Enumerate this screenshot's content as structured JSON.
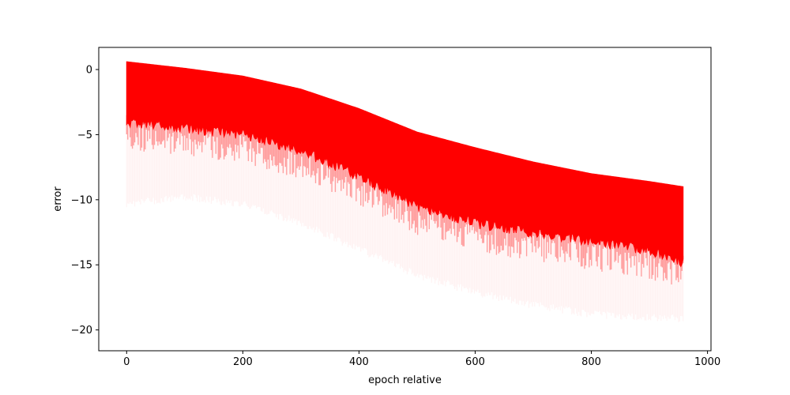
{
  "chart_data": {
    "type": "area",
    "title": "",
    "xlabel": "epoch relative",
    "ylabel": "error",
    "xlim": [
      -48,
      1006
    ],
    "ylim": [
      -21.6,
      1.7
    ],
    "x_ticks": [
      0,
      200,
      400,
      600,
      800,
      1000
    ],
    "x_tick_labels": [
      "0",
      "200",
      "400",
      "600",
      "800",
      "1000"
    ],
    "y_ticks": [
      0,
      -5,
      -10,
      -15,
      -20
    ],
    "y_tick_labels": [
      "0",
      "−5",
      "−10",
      "−15",
      "−20"
    ],
    "grid": false,
    "legend": "none",
    "color": "#ff0000",
    "series": [
      {
        "role": "upper_envelope",
        "x": [
          0,
          100,
          200,
          300,
          400,
          500,
          600,
          700,
          800,
          900,
          958
        ],
        "values": [
          0.6,
          0.1,
          -0.5,
          -1.5,
          -3.0,
          -4.8,
          -6.0,
          -7.1,
          -8.0,
          -8.6,
          -9.0
        ]
      },
      {
        "role": "dense_lower_bound",
        "x": [
          0,
          100,
          200,
          300,
          400,
          500,
          600,
          700,
          800,
          900,
          958
        ],
        "values": [
          -4.0,
          -4.5,
          -5.0,
          -6.2,
          -8.2,
          -10.5,
          -11.8,
          -12.5,
          -13.2,
          -13.9,
          -14.8
        ]
      },
      {
        "role": "sparse_lower_bound",
        "x": [
          0,
          100,
          200,
          300,
          400,
          500,
          600,
          700,
          800,
          900,
          958
        ],
        "values": [
          -10.0,
          -9.5,
          -10.0,
          -11.5,
          -13.5,
          -15.5,
          -16.8,
          -17.8,
          -18.5,
          -18.8,
          -18.8
        ]
      }
    ]
  }
}
